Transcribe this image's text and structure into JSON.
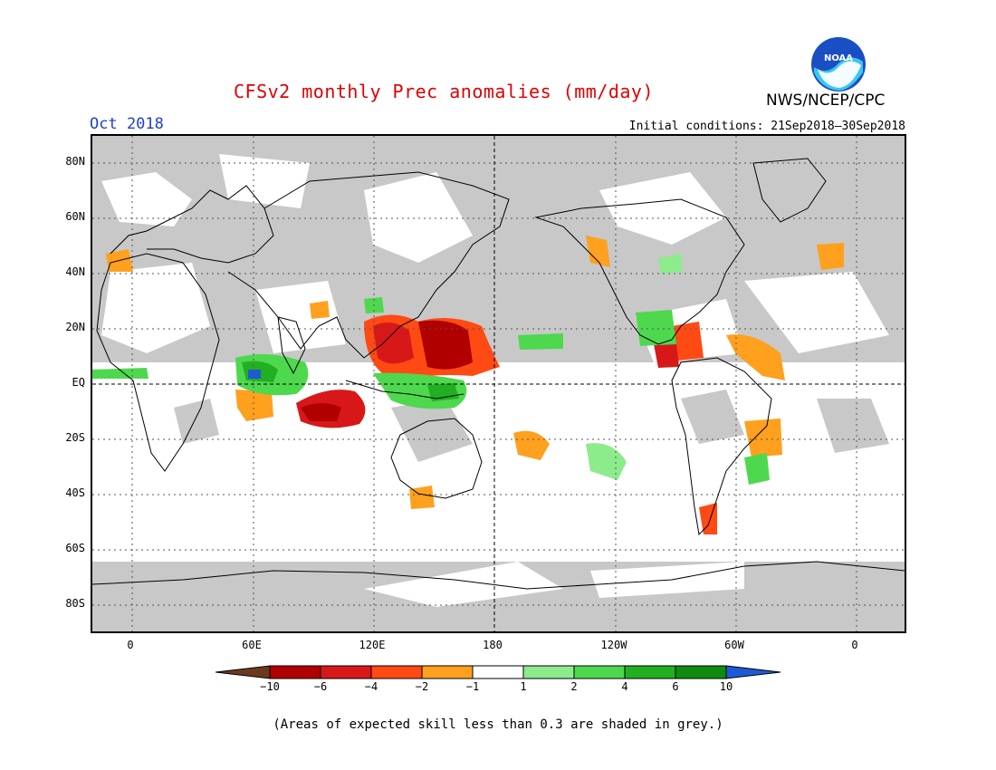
{
  "title": "CFSv2 monthly Prec anomalies (mm/day)",
  "month": "Oct 2018",
  "initial_conditions": "Initial conditions: 21Sep2018–30Sep2018",
  "organization": "NWS/NCEP/CPC",
  "logo_text": "NOAA",
  "lat_labels": [
    "80N",
    "60N",
    "40N",
    "20N",
    "EQ",
    "20S",
    "40S",
    "60S",
    "80S"
  ],
  "lon_labels": [
    "0",
    "60E",
    "120E",
    "180",
    "120W",
    "60W",
    "0"
  ],
  "colorbar": {
    "tick_labels": [
      "−10",
      "−6",
      "−4",
      "−2",
      "−1",
      "1",
      "2",
      "4",
      "6",
      "10"
    ],
    "colors": [
      "#6b3a1e",
      "#b00000",
      "#d81818",
      "#ff4a14",
      "#ffa01e",
      "#ffffff",
      "#8cec8c",
      "#4ed84e",
      "#22b022",
      "#0f8c0f",
      "#1e5ad8"
    ]
  },
  "footnote": "(Areas of expected skill less than 0.3 are shaded in grey.)"
}
